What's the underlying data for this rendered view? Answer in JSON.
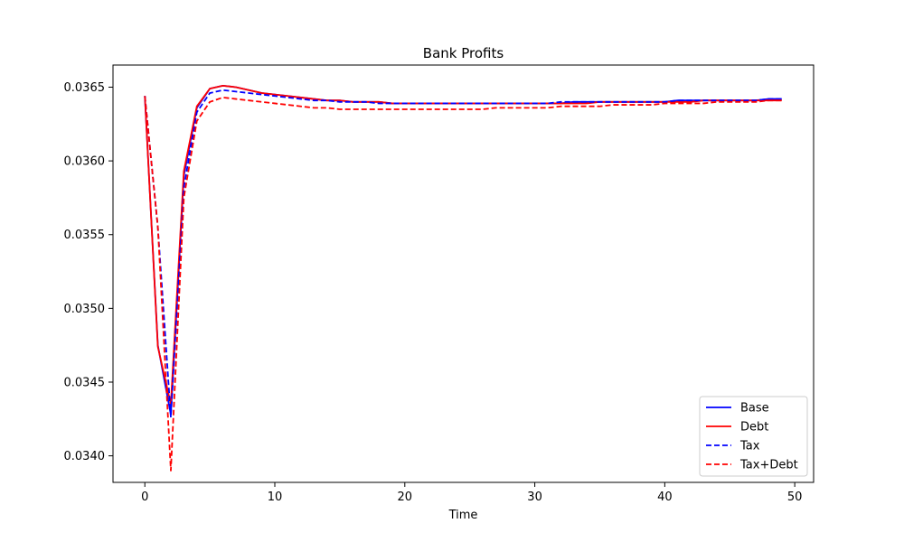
{
  "chart_data": {
    "type": "line",
    "title": "Bank Profits",
    "xlabel": "Time",
    "ylabel": "",
    "xlim": [
      -2.45,
      51.45
    ],
    "ylim": [
      0.03382,
      0.03665
    ],
    "xticks": [
      0,
      10,
      20,
      30,
      40,
      50
    ],
    "xtick_labels": [
      "0",
      "10",
      "20",
      "30",
      "40",
      "50"
    ],
    "yticks": [
      0.034,
      0.0345,
      0.035,
      0.0355,
      0.036,
      0.0365
    ],
    "ytick_labels": [
      "0.0340",
      "0.0345",
      "0.0350",
      "0.0355",
      "0.0360",
      "0.0365"
    ],
    "grid": false,
    "legend_position": "bottom-right",
    "x": [
      0,
      1,
      2,
      3,
      4,
      5,
      6,
      7,
      8,
      9,
      10,
      11,
      12,
      13,
      14,
      15,
      16,
      17,
      18,
      19,
      20,
      21,
      22,
      23,
      24,
      25,
      26,
      27,
      28,
      29,
      30,
      31,
      32,
      33,
      34,
      35,
      36,
      37,
      38,
      39,
      40,
      41,
      42,
      43,
      44,
      45,
      46,
      47,
      48,
      49
    ],
    "series": [
      {
        "name": "Base",
        "color": "#0000ff",
        "dash": "solid",
        "values": [
          0.03644,
          0.03475,
          0.03428,
          0.0359,
          0.03636,
          0.03649,
          0.03651,
          0.0365,
          0.03648,
          0.03646,
          0.03645,
          0.03644,
          0.03643,
          0.03642,
          0.03641,
          0.03641,
          0.0364,
          0.0364,
          0.0364,
          0.03639,
          0.03639,
          0.03639,
          0.03639,
          0.03639,
          0.03639,
          0.03639,
          0.03639,
          0.03639,
          0.03639,
          0.03639,
          0.03639,
          0.03639,
          0.03639,
          0.0364,
          0.0364,
          0.0364,
          0.0364,
          0.0364,
          0.0364,
          0.0364,
          0.0364,
          0.03641,
          0.03641,
          0.03641,
          0.03641,
          0.03641,
          0.03641,
          0.03641,
          0.03642,
          0.03642
        ]
      },
      {
        "name": "Debt",
        "color": "#ff0000",
        "dash": "solid",
        "values": [
          0.03644,
          0.03474,
          0.03435,
          0.03593,
          0.03637,
          0.03649,
          0.03651,
          0.0365,
          0.03648,
          0.03646,
          0.03645,
          0.03644,
          0.03643,
          0.03642,
          0.03641,
          0.03641,
          0.0364,
          0.0364,
          0.0364,
          0.03639,
          0.03639,
          0.03639,
          0.03639,
          0.03639,
          0.03639,
          0.03639,
          0.03639,
          0.03639,
          0.03639,
          0.03639,
          0.03639,
          0.03639,
          0.03639,
          0.03639,
          0.03639,
          0.0364,
          0.0364,
          0.0364,
          0.0364,
          0.0364,
          0.0364,
          0.0364,
          0.0364,
          0.03641,
          0.03641,
          0.03641,
          0.03641,
          0.03641,
          0.03641,
          0.03641
        ]
      },
      {
        "name": "Tax",
        "color": "#0000ff",
        "dash": "dashed",
        "values": [
          0.03644,
          0.03555,
          0.03426,
          0.03582,
          0.03633,
          0.03646,
          0.03648,
          0.03647,
          0.03646,
          0.03645,
          0.03644,
          0.03643,
          0.03642,
          0.03641,
          0.03641,
          0.0364,
          0.0364,
          0.0364,
          0.03639,
          0.03639,
          0.03639,
          0.03639,
          0.03639,
          0.03639,
          0.03639,
          0.03639,
          0.03639,
          0.03639,
          0.03639,
          0.03639,
          0.03639,
          0.03639,
          0.0364,
          0.0364,
          0.0364,
          0.0364,
          0.0364,
          0.0364,
          0.0364,
          0.0364,
          0.0364,
          0.03641,
          0.03641,
          0.03641,
          0.03641,
          0.03641,
          0.03641,
          0.03641,
          0.03642,
          0.03642
        ]
      },
      {
        "name": "Tax+Debt",
        "color": "#ff0000",
        "dash": "dashed",
        "values": [
          0.03644,
          0.03555,
          0.0339,
          0.03575,
          0.03627,
          0.0364,
          0.03643,
          0.03642,
          0.03641,
          0.0364,
          0.03639,
          0.03638,
          0.03637,
          0.03636,
          0.03636,
          0.03635,
          0.03635,
          0.03635,
          0.03635,
          0.03635,
          0.03635,
          0.03635,
          0.03635,
          0.03635,
          0.03635,
          0.03635,
          0.03635,
          0.03636,
          0.03636,
          0.03636,
          0.03636,
          0.03636,
          0.03637,
          0.03637,
          0.03637,
          0.03637,
          0.03638,
          0.03638,
          0.03638,
          0.03638,
          0.03639,
          0.03639,
          0.03639,
          0.03639,
          0.0364,
          0.0364,
          0.0364,
          0.0364,
          0.03641,
          0.03641
        ]
      }
    ]
  }
}
